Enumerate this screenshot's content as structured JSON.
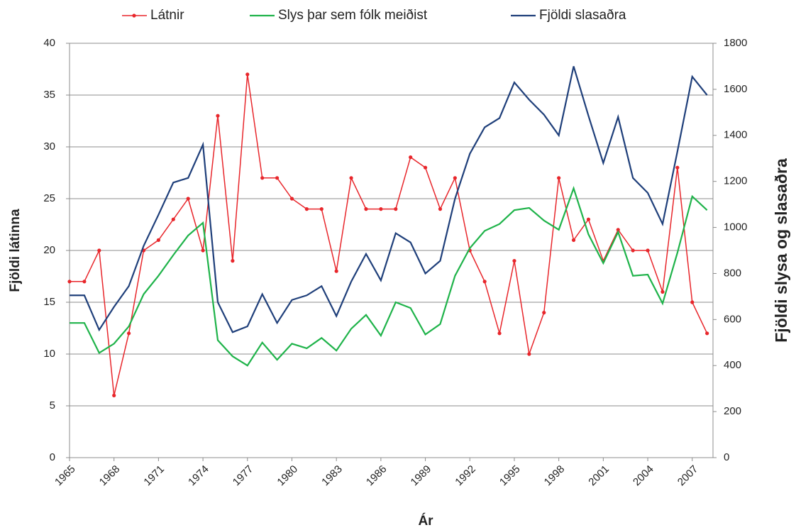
{
  "chart_data": {
    "type": "line",
    "x_label": "Ár",
    "y_label": "Fjöldi látinna",
    "y2_label": "Fjöldi slysa og slasaðra",
    "x": [
      1965,
      1966,
      1967,
      1968,
      1969,
      1970,
      1971,
      1972,
      1973,
      1974,
      1975,
      1976,
      1977,
      1978,
      1979,
      1980,
      1981,
      1982,
      1983,
      1984,
      1985,
      1986,
      1987,
      1988,
      1989,
      1990,
      1991,
      1992,
      1993,
      1994,
      1995,
      1996,
      1997,
      1998,
      1999,
      2000,
      2001,
      2002,
      2003,
      2004,
      2005,
      2006,
      2007,
      2008
    ],
    "xlim": [
      1965,
      2008.4
    ],
    "xticks": [
      1965,
      1968,
      1971,
      1974,
      1977,
      1980,
      1983,
      1986,
      1989,
      1992,
      1995,
      1998,
      2001,
      2004,
      2007
    ],
    "ylim": [
      0,
      40
    ],
    "yticks": [
      0,
      5,
      10,
      15,
      20,
      25,
      30,
      35,
      40
    ],
    "y2lim": [
      0,
      1800
    ],
    "y2ticks": [
      0,
      200,
      400,
      600,
      800,
      1000,
      1200,
      1400,
      1600,
      1800
    ],
    "grid": true,
    "legend": "top",
    "series": [
      {
        "name": "Látnir",
        "color": "#e8262b",
        "markers": true,
        "values": [
          17,
          17,
          20,
          6,
          12,
          20,
          21,
          23,
          25,
          20,
          33,
          19,
          37,
          27,
          27,
          25,
          24,
          24,
          18,
          27,
          24,
          24,
          24,
          29,
          28,
          24,
          27,
          20,
          17,
          12,
          19,
          10,
          14,
          27,
          21,
          23,
          19,
          22,
          20,
          20,
          16,
          28,
          15,
          12
        ]
      },
      {
        "name": "Slys þar sem fólk meiðist",
        "color": "#1fb34a",
        "axis": "y2",
        "values": [
          585,
          585,
          455,
          495,
          570,
          710,
          790,
          880,
          965,
          1020,
          510,
          440,
          400,
          500,
          425,
          495,
          475,
          520,
          465,
          560,
          620,
          530,
          675,
          650,
          535,
          580,
          790,
          910,
          985,
          1015,
          1075,
          1085,
          1030,
          990,
          1170,
          970,
          845,
          980,
          790,
          795,
          670,
          890,
          1135,
          1075
        ]
      },
      {
        "name": "Fjöldi slasaðra",
        "color": "#1f3f7a",
        "axis": "y2",
        "values": [
          705,
          705,
          555,
          655,
          745,
          920,
          1055,
          1195,
          1215,
          1360,
          675,
          545,
          570,
          710,
          585,
          685,
          705,
          745,
          615,
          765,
          885,
          770,
          975,
          935,
          800,
          855,
          1125,
          1320,
          1435,
          1475,
          1630,
          1555,
          1490,
          1400,
          1700,
          1485,
          1280,
          1480,
          1215,
          1150,
          1015,
          1330,
          1655,
          1575
        ]
      }
    ]
  }
}
